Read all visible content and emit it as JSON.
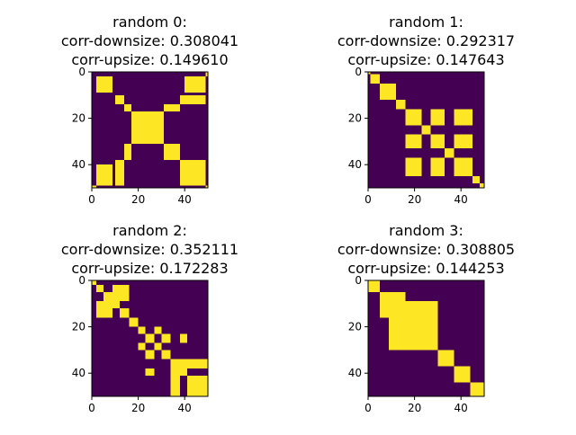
{
  "colors": {
    "off": "#440154",
    "on": "#fde725",
    "axis": "#000000",
    "background": "#ffffff"
  },
  "chart_data": [
    {
      "type": "heatmap",
      "title_lines": [
        "random 0:",
        "corr-downsize: 0.308041",
        "corr-upsize: 0.149610"
      ],
      "size": 50,
      "xticks": [
        0,
        20,
        40
      ],
      "yticks": [
        0,
        20,
        40
      ],
      "xlim": [
        0,
        50
      ],
      "ylim": [
        0,
        50
      ],
      "matrix_description": "binary 50x50 matrix; yellow cells = 1, purple cells = 0",
      "on_blocks": [
        [
          2,
          2,
          9,
          9
        ],
        [
          10,
          10,
          14,
          14
        ],
        [
          14,
          14,
          17,
          17
        ],
        [
          17,
          17,
          31,
          31
        ],
        [
          31,
          31,
          38,
          38
        ],
        [
          38,
          38,
          49,
          49
        ],
        [
          49,
          49,
          50,
          50
        ],
        [
          2,
          40,
          9,
          49
        ],
        [
          40,
          2,
          49,
          9
        ],
        [
          10,
          38,
          14,
          49
        ],
        [
          38,
          10,
          49,
          14
        ],
        [
          14,
          31,
          17,
          38
        ],
        [
          31,
          14,
          38,
          17
        ],
        [
          0,
          49,
          2,
          50
        ],
        [
          49,
          0,
          50,
          2
        ]
      ]
    },
    {
      "type": "heatmap",
      "title_lines": [
        "random 1:",
        "corr-downsize: 0.292317",
        "corr-upsize: 0.147643"
      ],
      "size": 50,
      "xticks": [
        0,
        20,
        40
      ],
      "yticks": [
        0,
        20,
        40
      ],
      "xlim": [
        0,
        50
      ],
      "ylim": [
        0,
        50
      ],
      "matrix_description": "binary 50x50 matrix; yellow cells = 1, purple cells = 0",
      "on_blocks": [
        [
          0,
          0,
          1,
          1
        ],
        [
          1,
          1,
          5,
          5
        ],
        [
          5,
          5,
          12,
          12
        ],
        [
          12,
          12,
          16,
          16
        ],
        [
          16,
          16,
          23,
          23
        ],
        [
          16,
          27,
          23,
          33
        ],
        [
          16,
          37,
          23,
          45
        ],
        [
          27,
          16,
          33,
          23
        ],
        [
          27,
          27,
          33,
          33
        ],
        [
          27,
          37,
          33,
          45
        ],
        [
          37,
          16,
          45,
          23
        ],
        [
          37,
          27,
          45,
          33
        ],
        [
          37,
          37,
          45,
          45
        ],
        [
          23,
          23,
          27,
          27
        ],
        [
          33,
          33,
          37,
          37
        ],
        [
          45,
          45,
          48,
          48
        ],
        [
          48,
          48,
          50,
          50
        ]
      ]
    },
    {
      "type": "heatmap",
      "title_lines": [
        "random 2:",
        "corr-downsize: 0.352111",
        "corr-upsize: 0.172283"
      ],
      "size": 50,
      "xticks": [
        0,
        20,
        40
      ],
      "yticks": [
        0,
        20,
        40
      ],
      "xlim": [
        0,
        50
      ],
      "ylim": [
        0,
        50
      ],
      "matrix_description": "binary 50x50 matrix; yellow cells = 1, purple cells = 0",
      "on_blocks": [
        [
          0,
          0,
          2,
          2
        ],
        [
          2,
          2,
          5,
          5
        ],
        [
          2,
          9,
          5,
          12
        ],
        [
          9,
          2,
          12,
          5
        ],
        [
          5,
          5,
          9,
          9
        ],
        [
          5,
          9,
          9,
          12
        ],
        [
          9,
          5,
          12,
          9
        ],
        [
          9,
          9,
          12,
          12
        ],
        [
          2,
          12,
          5,
          16
        ],
        [
          12,
          2,
          16,
          5
        ],
        [
          12,
          12,
          16,
          16
        ],
        [
          12,
          12,
          16,
          16
        ],
        [
          5,
          12,
          9,
          16
        ],
        [
          12,
          5,
          16,
          9
        ],
        [
          16,
          16,
          20,
          20
        ],
        [
          20,
          20,
          23,
          23
        ],
        [
          23,
          23,
          27,
          27
        ],
        [
          20,
          27,
          23,
          30
        ],
        [
          27,
          20,
          30,
          23
        ],
        [
          27,
          27,
          30,
          30
        ],
        [
          23,
          30,
          27,
          34
        ],
        [
          30,
          23,
          34,
          27
        ],
        [
          30,
          30,
          34,
          34
        ],
        [
          23,
          38,
          27,
          41
        ],
        [
          38,
          23,
          41,
          27
        ],
        [
          34,
          34,
          38,
          38
        ],
        [
          34,
          38,
          38,
          41
        ],
        [
          38,
          34,
          41,
          38
        ],
        [
          38,
          38,
          41,
          41
        ],
        [
          34,
          41,
          38,
          50
        ],
        [
          41,
          34,
          50,
          38
        ],
        [
          41,
          41,
          50,
          50
        ]
      ]
    },
    {
      "type": "heatmap",
      "title_lines": [
        "random 3:",
        "corr-downsize: 0.308805",
        "corr-upsize: 0.144253"
      ],
      "size": 50,
      "xticks": [
        0,
        20,
        40
      ],
      "yticks": [
        0,
        20,
        40
      ],
      "xlim": [
        0,
        50
      ],
      "ylim": [
        0,
        50
      ],
      "matrix_description": "binary 50x50 matrix; yellow cells = 1, purple cells = 0",
      "on_blocks": [
        [
          0,
          0,
          5,
          5
        ],
        [
          5,
          5,
          9,
          9
        ],
        [
          9,
          9,
          16,
          16
        ],
        [
          9,
          16,
          16,
          23
        ],
        [
          9,
          23,
          16,
          30
        ],
        [
          16,
          9,
          23,
          16
        ],
        [
          16,
          16,
          23,
          23
        ],
        [
          16,
          23,
          23,
          30
        ],
        [
          23,
          9,
          30,
          16
        ],
        [
          23,
          16,
          30,
          23
        ],
        [
          23,
          23,
          30,
          30
        ],
        [
          5,
          9,
          9,
          16
        ],
        [
          9,
          5,
          16,
          9
        ],
        [
          30,
          30,
          37,
          37
        ],
        [
          37,
          37,
          44,
          44
        ],
        [
          44,
          44,
          50,
          50
        ]
      ]
    }
  ]
}
